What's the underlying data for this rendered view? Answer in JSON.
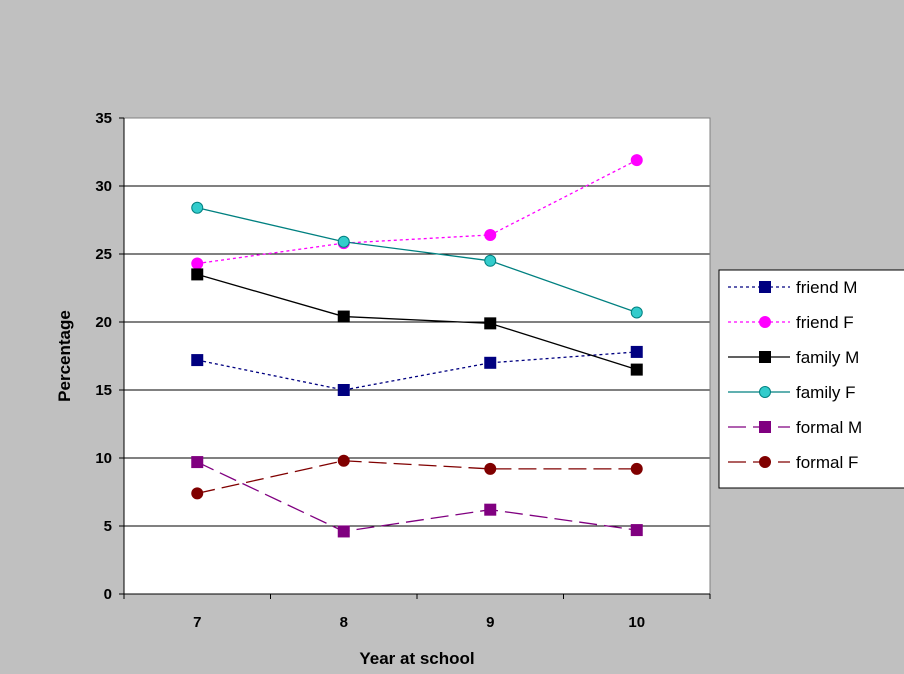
{
  "chart_data": {
    "type": "line",
    "title": "",
    "xlabel": "Year at school",
    "ylabel": "Percentage",
    "categories": [
      "7",
      "8",
      "9",
      "10"
    ],
    "ylim": [
      0,
      35
    ],
    "yticks": [
      0,
      5,
      10,
      15,
      20,
      25,
      30,
      35
    ],
    "grid": "horizontal",
    "legend_position": "right",
    "series": [
      {
        "name": "friend M",
        "values": [
          17.2,
          15.0,
          17.0,
          17.8
        ],
        "color": "#000080",
        "dash": "dotted",
        "marker": "square"
      },
      {
        "name": "friend F",
        "values": [
          24.3,
          25.8,
          26.4,
          31.9
        ],
        "color": "#ff00ff",
        "dash": "dotted",
        "marker": "circle"
      },
      {
        "name": "family M",
        "values": [
          23.5,
          20.4,
          19.9,
          16.5
        ],
        "color": "#000000",
        "dash": "solid",
        "marker": "square"
      },
      {
        "name": "family F",
        "values": [
          28.4,
          25.9,
          24.5,
          20.7
        ],
        "color": "#008080",
        "markerFill": "#33cccc",
        "dash": "solid",
        "marker": "circle"
      },
      {
        "name": "formal M",
        "values": [
          9.7,
          4.6,
          6.2,
          4.7
        ],
        "color": "#800080",
        "dash": "longdash",
        "marker": "square"
      },
      {
        "name": "formal F",
        "values": [
          7.4,
          9.8,
          9.2,
          9.2
        ],
        "color": "#800000",
        "dash": "longdash",
        "marker": "circle"
      }
    ]
  }
}
